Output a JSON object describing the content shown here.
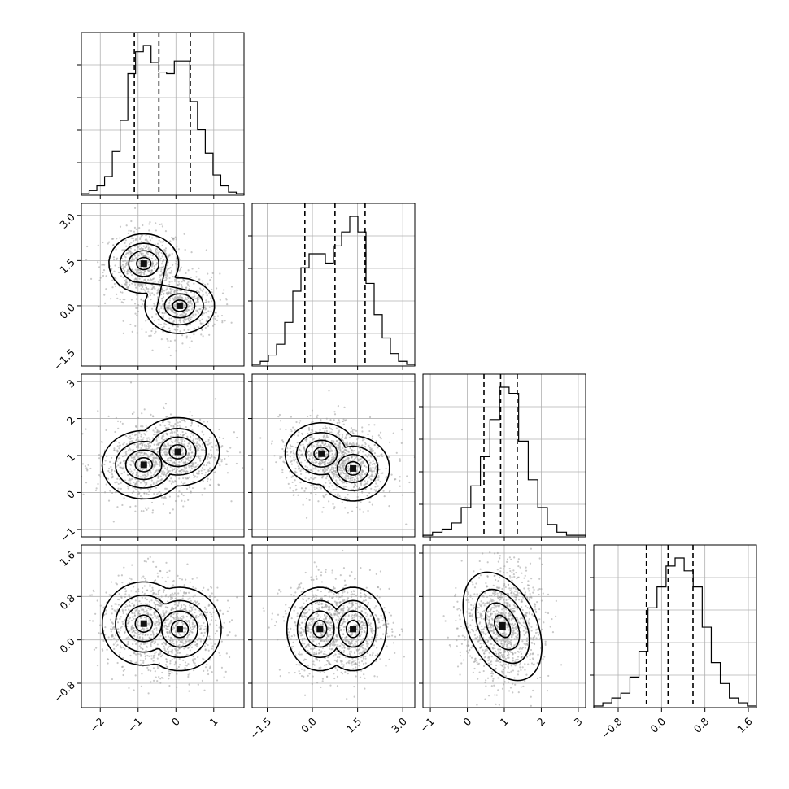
{
  "chart_data": {
    "type": "corner",
    "description_variables": 4,
    "axes": [
      {
        "range": [
          -2.5,
          1.8
        ],
        "ticks": [
          -2,
          -1,
          0,
          1
        ],
        "tick_labels": [
          "−2",
          "−1",
          "0",
          "1"
        ]
      },
      {
        "range": [
          -2.0,
          3.4
        ],
        "ticks": [
          -1.5,
          0.0,
          1.5,
          3.0
        ],
        "tick_labels": [
          "−1.5",
          "0.0",
          "1.5",
          "3.0"
        ]
      },
      {
        "range": [
          -1.2,
          3.2
        ],
        "ticks": [
          -1,
          0,
          1,
          2,
          3
        ],
        "tick_labels": [
          "−1",
          "0",
          "1",
          "2",
          "3"
        ]
      },
      {
        "range": [
          -1.25,
          1.75
        ],
        "ticks": [
          -0.8,
          0.0,
          0.8,
          1.6
        ],
        "tick_labels": [
          "−0.8",
          "0.0",
          "0.8",
          "1.6"
        ]
      }
    ],
    "histograms": [
      {
        "quantiles": [
          -1.1,
          -0.45,
          0.38
        ],
        "counts": [
          0.01,
          0.03,
          0.06,
          0.12,
          0.28,
          0.48,
          0.78,
          0.92,
          0.96,
          0.85,
          0.79,
          0.78,
          0.86,
          0.86,
          0.6,
          0.42,
          0.27,
          0.13,
          0.06,
          0.02,
          0.01
        ]
      },
      {
        "quantiles": [
          -0.25,
          0.75,
          1.75
        ],
        "counts": [
          0.01,
          0.03,
          0.07,
          0.14,
          0.28,
          0.48,
          0.63,
          0.72,
          0.72,
          0.66,
          0.77,
          0.86,
          0.96,
          0.86,
          0.53,
          0.33,
          0.18,
          0.08,
          0.03,
          0.01
        ]
      },
      {
        "quantiles": [
          0.45,
          0.9,
          1.35
        ],
        "counts": [
          0.01,
          0.03,
          0.05,
          0.09,
          0.19,
          0.33,
          0.52,
          0.76,
          0.97,
          0.93,
          0.62,
          0.37,
          0.19,
          0.08,
          0.03,
          0.01,
          0.01
        ]
      },
      {
        "quantiles": [
          -0.28,
          0.12,
          0.58
        ],
        "counts": [
          0.01,
          0.03,
          0.06,
          0.09,
          0.19,
          0.35,
          0.62,
          0.75,
          0.88,
          0.93,
          0.85,
          0.75,
          0.5,
          0.28,
          0.15,
          0.06,
          0.03,
          0.01
        ]
      }
    ],
    "pairs": [
      {
        "row": 1,
        "col": 0,
        "clusters": [
          {
            "x": -0.85,
            "y": 1.4,
            "sx": 0.42,
            "sy": 0.45
          },
          {
            "x": 0.1,
            "y": 0.0,
            "sx": 0.42,
            "sy": 0.42
          }
        ]
      },
      {
        "row": 2,
        "col": 0,
        "clusters": [
          {
            "x": -0.85,
            "y": 0.75,
            "sx": 0.5,
            "sy": 0.42
          },
          {
            "x": 0.05,
            "y": 1.1,
            "sx": 0.5,
            "sy": 0.42
          }
        ]
      },
      {
        "row": 2,
        "col": 1,
        "clusters": [
          {
            "x": 0.3,
            "y": 1.05,
            "sx": 0.55,
            "sy": 0.38
          },
          {
            "x": 1.35,
            "y": 0.65,
            "sx": 0.55,
            "sy": 0.4
          }
        ]
      },
      {
        "row": 3,
        "col": 0,
        "clusters": [
          {
            "x": -0.85,
            "y": 0.3,
            "sx": 0.5,
            "sy": 0.35
          },
          {
            "x": 0.1,
            "y": 0.2,
            "sx": 0.5,
            "sy": 0.35
          }
        ]
      },
      {
        "row": 3,
        "col": 1,
        "clusters": [
          {
            "x": 0.25,
            "y": 0.2,
            "sx": 0.5,
            "sy": 0.35
          },
          {
            "x": 1.35,
            "y": 0.2,
            "sx": 0.5,
            "sy": 0.35
          }
        ]
      },
      {
        "row": 3,
        "col": 2,
        "clusters": [
          {
            "x": 0.95,
            "y": 0.25,
            "sx": 0.42,
            "sy": 0.42
          }
        ]
      }
    ]
  }
}
